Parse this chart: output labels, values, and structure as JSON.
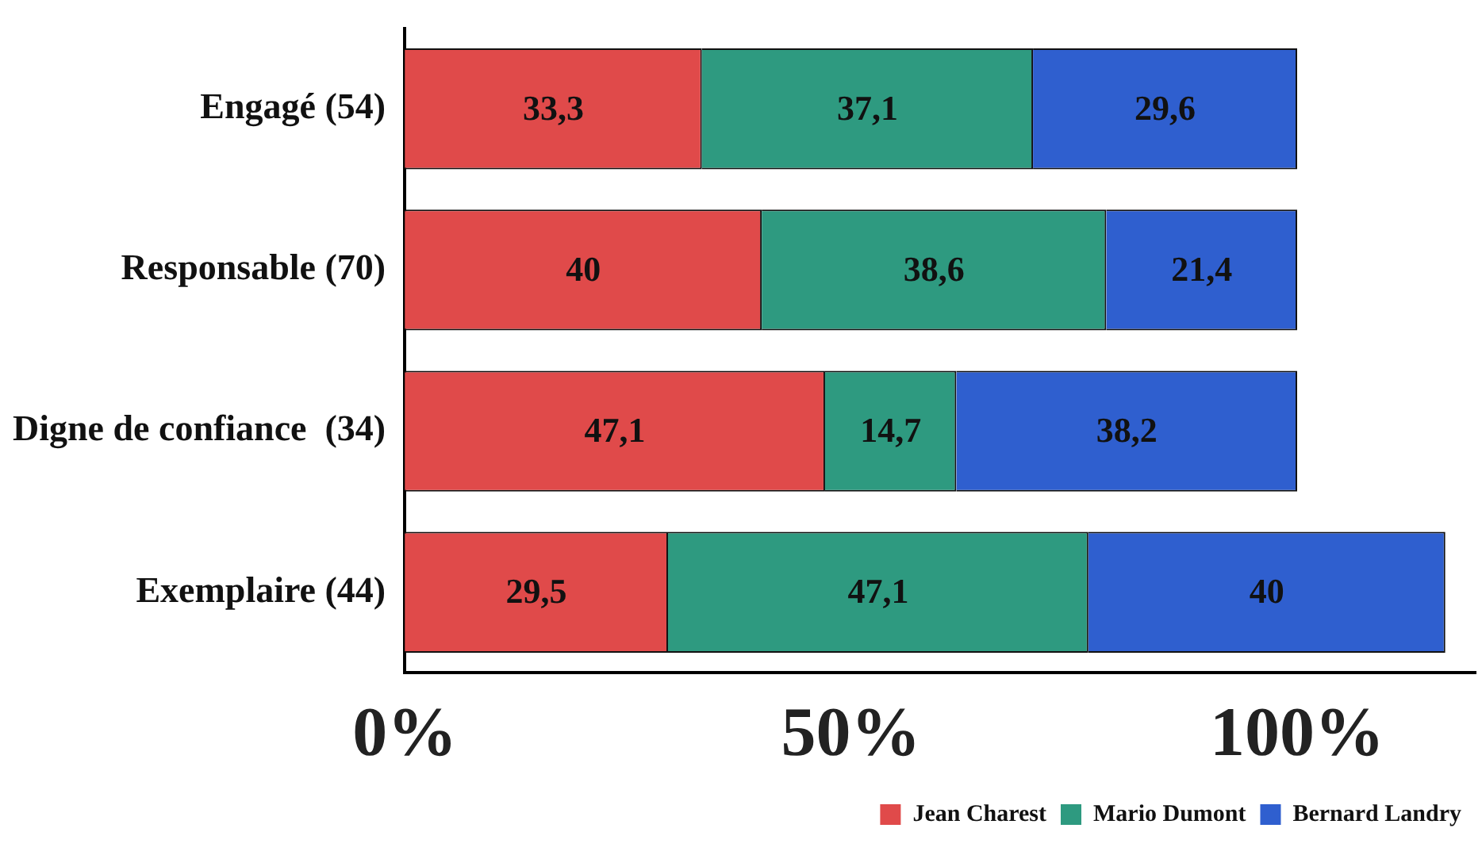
{
  "chart_data": {
    "type": "bar",
    "orientation": "horizontal",
    "stacked": true,
    "categories": [
      "Engagé (54)",
      "Responsable (70)",
      "Digne de confiance  (34)",
      "Exemplaire (44)"
    ],
    "series": [
      {
        "name": "Jean Charest",
        "color": "#e04a4a",
        "values": [
          33.3,
          40,
          47.1,
          29.5
        ],
        "value_labels": [
          "33,3",
          "40",
          "47,1",
          "29,5"
        ]
      },
      {
        "name": "Mario Dumont",
        "color": "#2e9a80",
        "values": [
          37.1,
          38.6,
          14.7,
          47.1
        ],
        "value_labels": [
          "37,1",
          "38,6",
          "14,7",
          "47,1"
        ]
      },
      {
        "name": "Bernard Landry",
        "color": "#2f5fcf",
        "values": [
          29.6,
          21.4,
          38.2,
          40
        ],
        "value_labels": [
          "29,6",
          "21,4",
          "38,2",
          "40"
        ]
      }
    ],
    "xlim": [
      0,
      120
    ],
    "xticks": [
      {
        "value": 0,
        "label": "0%"
      },
      {
        "value": 50,
        "label": "50%"
      },
      {
        "value": 100,
        "label": "100%"
      }
    ],
    "grid": false,
    "legend": "bottom right"
  }
}
